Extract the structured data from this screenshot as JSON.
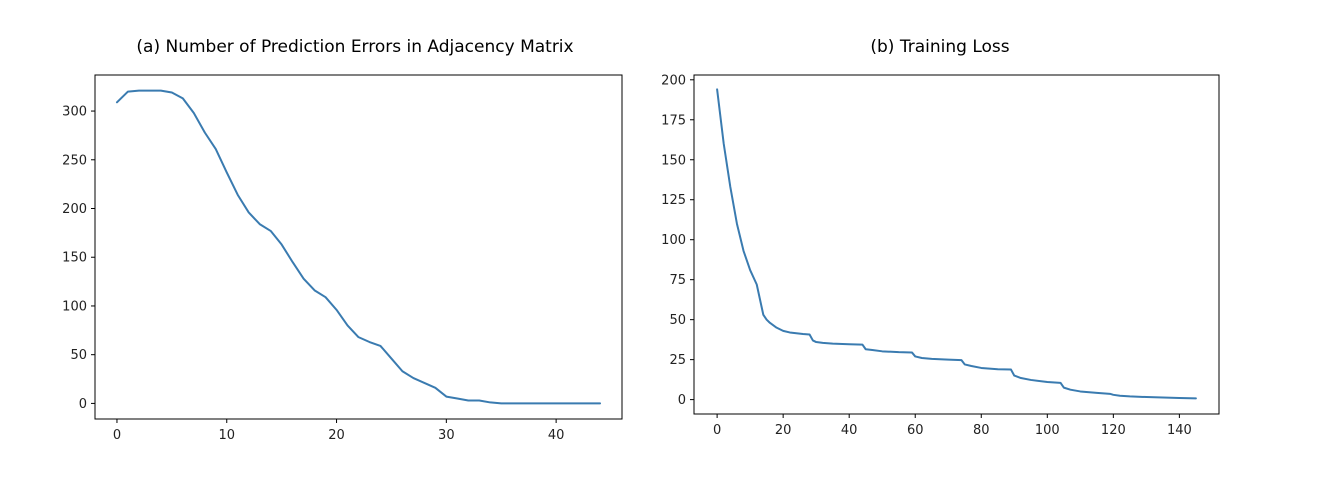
{
  "chart_data": [
    {
      "type": "line",
      "title": "(a) Number of Prediction Errors in Adjacency Matrix",
      "xlabel": "",
      "ylabel": "",
      "xlim": [
        -2,
        46
      ],
      "ylim": [
        -16,
        337
      ],
      "x_ticks": [
        0,
        10,
        20,
        30,
        40
      ],
      "y_ticks": [
        0,
        50,
        100,
        150,
        200,
        250,
        300
      ],
      "grid": false,
      "color": "#3a7bb0",
      "series": [
        {
          "x": [
            0,
            1,
            2,
            3,
            4,
            5,
            6,
            7,
            8,
            9,
            10,
            11,
            12,
            13,
            14,
            15,
            16,
            17,
            18,
            19,
            20,
            21,
            22,
            23,
            24,
            25,
            26,
            27,
            28,
            29,
            30,
            31,
            32,
            33,
            34,
            35,
            36,
            37,
            38,
            39,
            40,
            41,
            42,
            43,
            44
          ],
          "values": [
            309,
            320,
            321,
            321,
            321,
            319,
            313,
            298,
            278,
            261,
            237,
            214,
            196,
            184,
            177,
            163,
            145,
            128,
            116,
            109,
            96,
            80,
            68,
            63,
            59,
            46,
            33,
            26,
            21,
            16,
            7,
            5,
            3,
            3,
            1,
            0,
            0,
            0,
            0,
            0,
            0,
            0,
            0,
            0,
            0
          ]
        }
      ]
    },
    {
      "type": "line",
      "title": "(b) Training Loss",
      "xlabel": "",
      "ylabel": "",
      "xlim": [
        -7,
        152
      ],
      "ylim": [
        -9,
        203
      ],
      "x_ticks": [
        0,
        20,
        40,
        60,
        80,
        100,
        120,
        140
      ],
      "y_ticks": [
        0,
        25,
        50,
        75,
        100,
        125,
        150,
        175,
        200
      ],
      "grid": false,
      "color": "#3a7bb0",
      "series": [
        {
          "x": [
            0,
            2,
            4,
            6,
            8,
            10,
            12,
            14,
            15,
            16,
            18,
            20,
            22,
            24,
            26,
            28,
            29,
            30,
            32,
            35,
            40,
            44,
            45,
            47,
            50,
            55,
            59,
            60,
            62,
            65,
            70,
            74,
            75,
            77,
            80,
            85,
            89,
            90,
            92,
            95,
            100,
            104,
            105,
            107,
            110,
            115,
            119,
            120,
            122,
            125,
            130,
            135,
            140,
            145
          ],
          "values": [
            194,
            160,
            133,
            110,
            93,
            81,
            72,
            53,
            50,
            48,
            45,
            43,
            42,
            41.5,
            41,
            40.7,
            37,
            36,
            35.5,
            35,
            34.6,
            34.4,
            31.5,
            31,
            30.2,
            29.7,
            29.5,
            27,
            26,
            25.5,
            25,
            24.7,
            22,
            21,
            19.8,
            19,
            18.8,
            15,
            13.5,
            12.3,
            11,
            10.5,
            7.5,
            6.2,
            5.1,
            4.2,
            3.6,
            3.0,
            2.4,
            2.0,
            1.6,
            1.3,
            1.0,
            0.8
          ]
        }
      ]
    }
  ]
}
